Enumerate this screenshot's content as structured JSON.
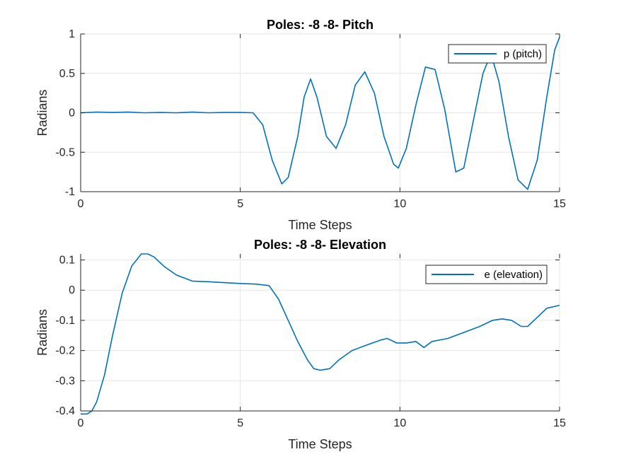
{
  "chart_data": [
    {
      "type": "line",
      "title": "Poles: -8 -8- Pitch",
      "xlabel": "Time Steps",
      "ylabel": "Radians",
      "xlim": [
        0,
        15
      ],
      "ylim": [
        -1,
        1
      ],
      "xticks": [
        0,
        5,
        10,
        15
      ],
      "xtick_labels": [
        "0",
        "5",
        "10",
        "15"
      ],
      "yticks": [
        -1,
        -0.5,
        0,
        0.5,
        1
      ],
      "ytick_labels": [
        "-1",
        "-0.5",
        "0",
        "0.5",
        "1"
      ],
      "grid": true,
      "legend_position": "top-right",
      "series": [
        {
          "name": "p (pitch)",
          "color": "#0072BD",
          "x": [
            0,
            0.5,
            1,
            1.5,
            2,
            2.5,
            3,
            3.5,
            4,
            4.5,
            5,
            5.4,
            5.7,
            6.0,
            6.3,
            6.5,
            6.8,
            7.0,
            7.2,
            7.4,
            7.7,
            8.0,
            8.3,
            8.6,
            8.9,
            9.2,
            9.5,
            9.8,
            9.95,
            10.2,
            10.5,
            10.8,
            11.1,
            11.4,
            11.75,
            12.0,
            12.3,
            12.6,
            12.85,
            13.1,
            13.4,
            13.7,
            14.0,
            14.3,
            14.6,
            14.85,
            15.0
          ],
          "y": [
            0,
            0.01,
            0.005,
            0.01,
            0,
            0.005,
            0,
            0.01,
            0,
            0.005,
            0.005,
            0,
            -0.15,
            -0.6,
            -0.9,
            -0.82,
            -0.3,
            0.2,
            0.43,
            0.2,
            -0.3,
            -0.45,
            -0.15,
            0.35,
            0.52,
            0.25,
            -0.3,
            -0.65,
            -0.7,
            -0.45,
            0.1,
            0.58,
            0.55,
            0.05,
            -0.75,
            -0.7,
            -0.1,
            0.5,
            0.75,
            0.4,
            -0.3,
            -0.85,
            -0.97,
            -0.6,
            0.2,
            0.8,
            0.96
          ]
        }
      ]
    },
    {
      "type": "line",
      "title": "Poles: -8 -8- Elevation",
      "xlabel": "Time Steps",
      "ylabel": "Radians",
      "xlim": [
        0,
        15
      ],
      "ylim": [
        -0.4,
        0.12
      ],
      "xticks": [
        0,
        5,
        10,
        15
      ],
      "xtick_labels": [
        "0",
        "5",
        "10",
        "15"
      ],
      "yticks": [
        -0.4,
        -0.3,
        -0.2,
        -0.1,
        0,
        0.1
      ],
      "ytick_labels": [
        "-0.4",
        "-0.3",
        "-0.2",
        "-0.1",
        "0",
        "0.1"
      ],
      "grid": true,
      "legend_position": "top-right",
      "series": [
        {
          "name": "e (elevation)",
          "color": "#0072BD",
          "x": [
            0,
            0.2,
            0.35,
            0.5,
            0.75,
            1.0,
            1.3,
            1.6,
            1.9,
            2.1,
            2.3,
            2.6,
            3.0,
            3.5,
            4.0,
            4.5,
            5.0,
            5.5,
            5.9,
            6.2,
            6.5,
            6.8,
            7.1,
            7.3,
            7.5,
            7.8,
            8.1,
            8.5,
            9.0,
            9.4,
            9.6,
            9.9,
            10.2,
            10.5,
            10.75,
            11.0,
            11.5,
            12.0,
            12.5,
            12.9,
            13.2,
            13.5,
            13.8,
            14.0,
            14.3,
            14.6,
            15.0
          ],
          "y": [
            -0.41,
            -0.41,
            -0.4,
            -0.37,
            -0.28,
            -0.15,
            -0.01,
            0.08,
            0.12,
            0.12,
            0.11,
            0.08,
            0.05,
            0.03,
            0.028,
            0.025,
            0.022,
            0.02,
            0.015,
            -0.03,
            -0.1,
            -0.17,
            -0.23,
            -0.26,
            -0.265,
            -0.26,
            -0.23,
            -0.2,
            -0.18,
            -0.165,
            -0.16,
            -0.175,
            -0.175,
            -0.17,
            -0.19,
            -0.17,
            -0.16,
            -0.14,
            -0.12,
            -0.1,
            -0.095,
            -0.1,
            -0.12,
            -0.12,
            -0.09,
            -0.06,
            -0.05
          ]
        }
      ]
    }
  ]
}
